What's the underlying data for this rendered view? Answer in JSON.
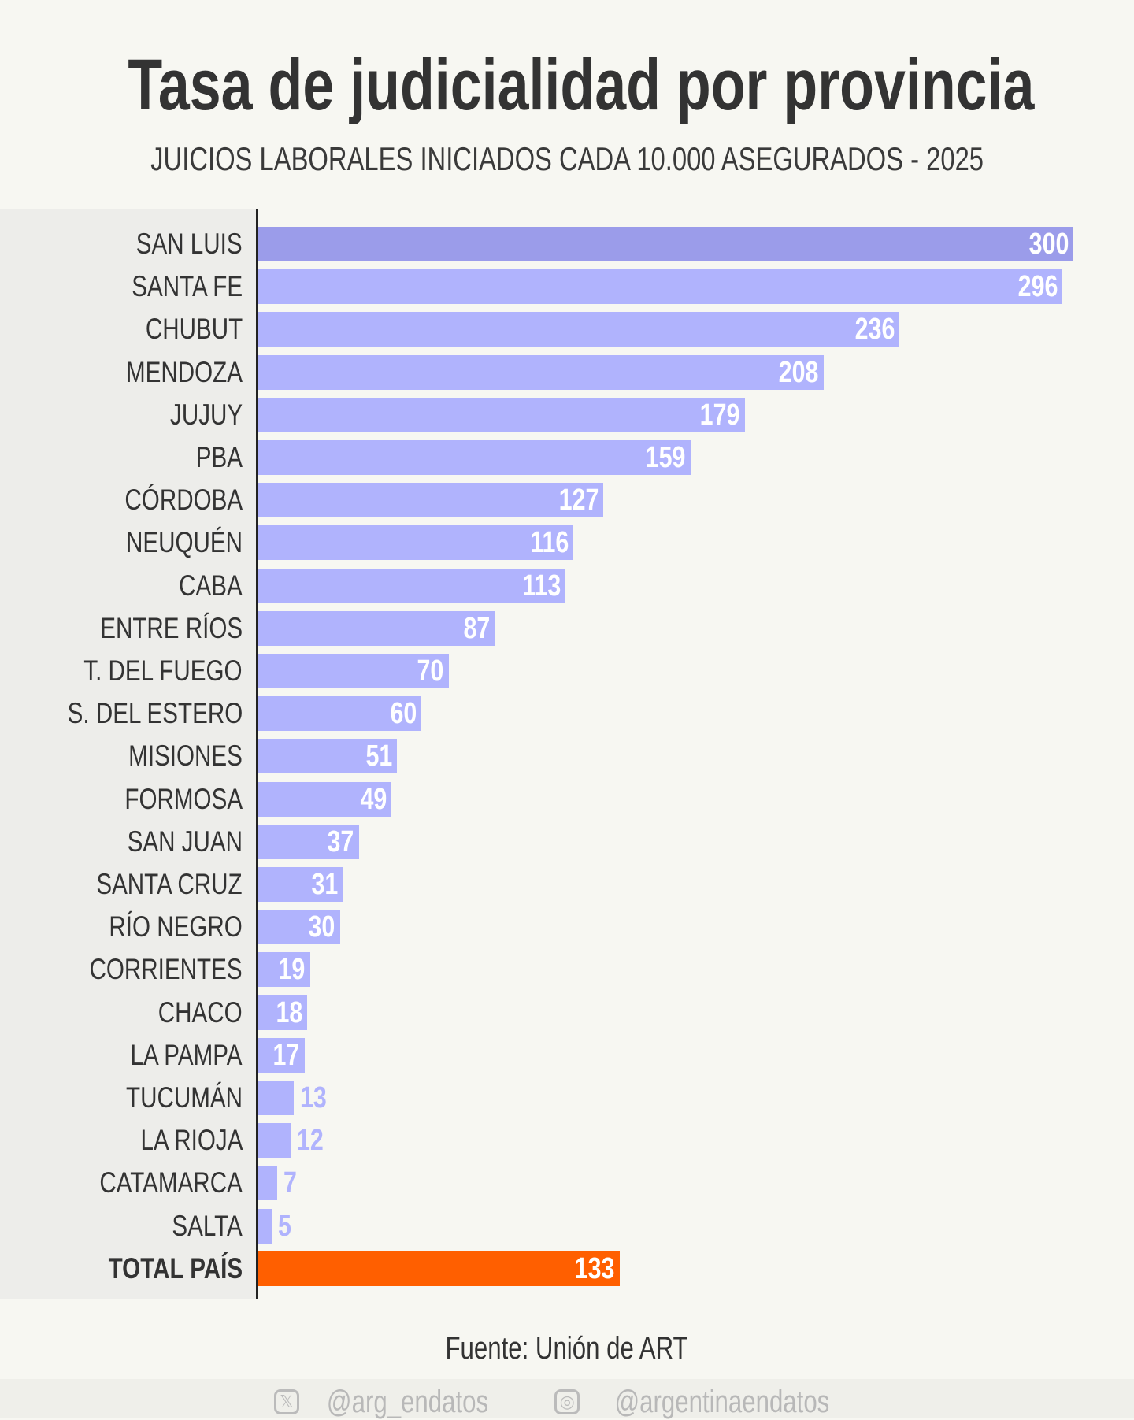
{
  "title": "Tasa de judicialidad por provincia",
  "subtitle": "JUICIOS LABORALES INICIADOS CADA 10.000 ASEGURADOS - 2025",
  "source": "Fuente: Unión de ART",
  "footer": {
    "x_handle": "@arg_endatos",
    "x_icon": "x-logo-icon",
    "instagram_handle": "@argentinaendatos",
    "instagram_icon": "instagram-icon"
  },
  "colors": {
    "bar": "#b0b3fd",
    "highlight_bar": "#9b9cea",
    "total_bar": "#ff5f00",
    "outside_label": "#b0b3fd"
  },
  "chart_data": {
    "type": "bar",
    "orientation": "horizontal",
    "title": "Tasa de judicialidad por provincia",
    "subtitle": "JUICIOS LABORALES INICIADOS CADA 10.000 ASEGURADOS - 2025",
    "xlim": [
      0,
      300
    ],
    "grid": false,
    "categories": [
      "SAN LUIS",
      "SANTA FE",
      "CHUBUT",
      "MENDOZA",
      "JUJUY",
      "PBA",
      "CÓRDOBA",
      "NEUQUÉN",
      "CABA",
      "ENTRE RÍOS",
      "T. DEL FUEGO",
      "S. DEL ESTERO",
      "MISIONES",
      "FORMOSA",
      "SAN JUAN",
      "SANTA CRUZ",
      "RÍO NEGRO",
      "CORRIENTES",
      "CHACO",
      "LA PAMPA",
      "TUCUMÁN",
      "LA RIOJA",
      "CATAMARCA",
      "SALTA",
      "TOTAL PAÍS"
    ],
    "values": [
      300,
      296,
      236,
      208,
      179,
      159,
      127,
      116,
      113,
      87,
      70,
      60,
      51,
      49,
      37,
      31,
      30,
      19,
      18,
      17,
      13,
      12,
      7,
      5,
      133
    ],
    "labels": [
      "300",
      "296",
      "236",
      "208",
      "179",
      "159",
      "127",
      "116",
      "113",
      "87",
      "70",
      "60",
      "51",
      "49",
      "37",
      "31",
      "30",
      "19",
      "18",
      "17",
      "13",
      "12",
      "7",
      "5",
      "133"
    ]
  }
}
